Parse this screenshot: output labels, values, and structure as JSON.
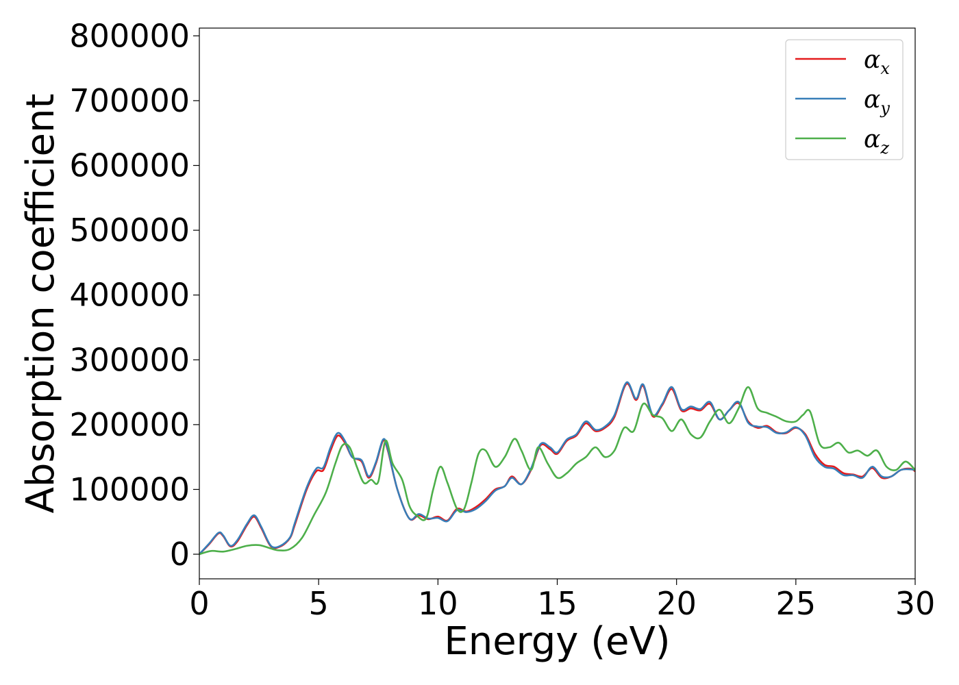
{
  "chart_data": {
    "type": "line",
    "title": "",
    "xlabel": "Energy (eV)",
    "ylabel": "Absorption coefficient",
    "xlim": [
      0,
      30
    ],
    "ylim": [
      -38000,
      812000
    ],
    "xticks": [
      0,
      5,
      10,
      15,
      20,
      25,
      30
    ],
    "yticks": [
      0,
      100000,
      200000,
      300000,
      400000,
      500000,
      600000,
      700000,
      800000
    ],
    "grid": false,
    "legend_position": "top-right",
    "series": [
      {
        "name": "αx",
        "name_base": "α",
        "name_sub": "x",
        "color": "#e41a1c",
        "x": [
          0,
          0.4,
          0.8,
          1.0,
          1.3,
          1.6,
          2.0,
          2.3,
          2.6,
          3.0,
          3.4,
          3.8,
          4.0,
          4.5,
          4.9,
          5.2,
          5.5,
          5.8,
          6.1,
          6.4,
          6.8,
          7.1,
          7.4,
          7.7,
          7.9,
          8.3,
          8.8,
          9.2,
          9.6,
          10.0,
          10.4,
          10.8,
          11.2,
          11.6,
          12.0,
          12.4,
          12.8,
          13.1,
          13.5,
          13.9,
          14.3,
          14.7,
          15.0,
          15.4,
          15.8,
          16.2,
          16.6,
          17.0,
          17.4,
          17.9,
          18.3,
          18.6,
          19.0,
          19.4,
          19.8,
          20.2,
          20.6,
          21.0,
          21.4,
          21.8,
          22.2,
          22.6,
          23.0,
          23.4,
          23.8,
          24.2,
          24.6,
          25.0,
          25.4,
          25.8,
          26.2,
          26.6,
          27.0,
          27.4,
          27.8,
          28.2,
          28.6,
          29.0,
          29.4,
          29.8,
          30.0
        ],
        "y": [
          0,
          15000,
          32000,
          28000,
          12000,
          20000,
          45000,
          58000,
          40000,
          12000,
          12000,
          25000,
          45000,
          100000,
          128000,
          130000,
          160000,
          183000,
          172000,
          150000,
          143000,
          118000,
          140000,
          175000,
          160000,
          100000,
          55000,
          60000,
          54000,
          58000,
          52000,
          70000,
          66000,
          73000,
          85000,
          100000,
          105000,
          120000,
          108000,
          130000,
          168000,
          162000,
          155000,
          175000,
          183000,
          202000,
          190000,
          195000,
          212000,
          263000,
          238000,
          260000,
          213000,
          230000,
          255000,
          222000,
          225000,
          222000,
          232000,
          208000,
          222000,
          233000,
          205000,
          195000,
          198000,
          188000,
          187000,
          195000,
          185000,
          155000,
          138000,
          135000,
          125000,
          123000,
          120000,
          133000,
          118000,
          120000,
          130000,
          132000,
          128000
        ]
      },
      {
        "name": "αy",
        "name_base": "α",
        "name_sub": "y",
        "color": "#377eb8",
        "x": [
          0,
          0.4,
          0.8,
          1.0,
          1.3,
          1.6,
          2.0,
          2.3,
          2.6,
          3.0,
          3.4,
          3.8,
          4.0,
          4.5,
          4.9,
          5.2,
          5.5,
          5.8,
          6.1,
          6.4,
          6.8,
          7.1,
          7.4,
          7.7,
          7.9,
          8.3,
          8.8,
          9.2,
          9.6,
          10.0,
          10.4,
          10.8,
          11.2,
          11.6,
          12.0,
          12.4,
          12.8,
          13.1,
          13.5,
          13.9,
          14.3,
          14.7,
          15.0,
          15.4,
          15.8,
          16.2,
          16.6,
          17.0,
          17.4,
          17.9,
          18.3,
          18.6,
          19.0,
          19.4,
          19.8,
          20.2,
          20.6,
          21.0,
          21.4,
          21.8,
          22.2,
          22.6,
          23.0,
          23.4,
          23.8,
          24.2,
          24.6,
          25.0,
          25.4,
          25.8,
          26.2,
          26.6,
          27.0,
          27.4,
          27.8,
          28.2,
          28.6,
          29.0,
          29.4,
          29.8,
          30.0
        ],
        "y": [
          0,
          16000,
          33000,
          29000,
          13000,
          22000,
          47000,
          60000,
          42000,
          13000,
          13000,
          26000,
          48000,
          103000,
          132000,
          134000,
          165000,
          187000,
          175000,
          150000,
          145000,
          120000,
          142000,
          177000,
          162000,
          100000,
          55000,
          62000,
          55000,
          56000,
          51000,
          68000,
          65000,
          70000,
          82000,
          98000,
          105000,
          118000,
          108000,
          132000,
          170000,
          165000,
          157000,
          177000,
          185000,
          205000,
          192000,
          197000,
          215000,
          265000,
          240000,
          262000,
          215000,
          232000,
          258000,
          224000,
          228000,
          224000,
          235000,
          208000,
          222000,
          235000,
          203000,
          197000,
          196000,
          187000,
          188000,
          196000,
          183000,
          150000,
          135000,
          132000,
          122000,
          122000,
          118000,
          135000,
          120000,
          120000,
          130000,
          131000,
          130000
        ]
      },
      {
        "name": "αz",
        "name_base": "α",
        "name_sub": "z",
        "color": "#4daf4a",
        "x": [
          0,
          0.5,
          1.0,
          1.5,
          2.0,
          2.5,
          2.9,
          3.3,
          3.8,
          4.3,
          4.8,
          5.3,
          5.7,
          6.0,
          6.3,
          6.6,
          6.9,
          7.2,
          7.5,
          7.8,
          8.1,
          8.5,
          8.8,
          9.1,
          9.5,
          9.8,
          10.1,
          10.4,
          10.8,
          11.1,
          11.4,
          11.7,
          12.0,
          12.4,
          12.8,
          13.2,
          13.5,
          13.9,
          14.2,
          14.6,
          15.0,
          15.4,
          15.8,
          16.2,
          16.6,
          17.0,
          17.4,
          17.8,
          18.2,
          18.6,
          19.0,
          19.4,
          19.8,
          20.2,
          20.6,
          21.0,
          21.4,
          21.8,
          22.2,
          22.6,
          23.0,
          23.4,
          23.8,
          24.2,
          24.6,
          25.0,
          25.3,
          25.6,
          26.0,
          26.4,
          26.8,
          27.2,
          27.6,
          28.0,
          28.4,
          28.8,
          29.2,
          29.6,
          30.0
        ],
        "y": [
          0,
          5000,
          4000,
          8000,
          13000,
          14000,
          10000,
          6000,
          8000,
          25000,
          60000,
          95000,
          140000,
          168000,
          165000,
          135000,
          110000,
          115000,
          112000,
          175000,
          140000,
          115000,
          75000,
          60000,
          55000,
          100000,
          135000,
          110000,
          70000,
          70000,
          110000,
          155000,
          160000,
          135000,
          150000,
          178000,
          160000,
          130000,
          165000,
          140000,
          118000,
          125000,
          140000,
          150000,
          165000,
          150000,
          160000,
          195000,
          190000,
          232000,
          215000,
          210000,
          190000,
          208000,
          185000,
          180000,
          205000,
          223000,
          202000,
          225000,
          258000,
          225000,
          218000,
          212000,
          205000,
          205000,
          215000,
          220000,
          170000,
          165000,
          172000,
          157000,
          160000,
          152000,
          160000,
          135000,
          130000,
          143000,
          130000
        ]
      }
    ]
  }
}
